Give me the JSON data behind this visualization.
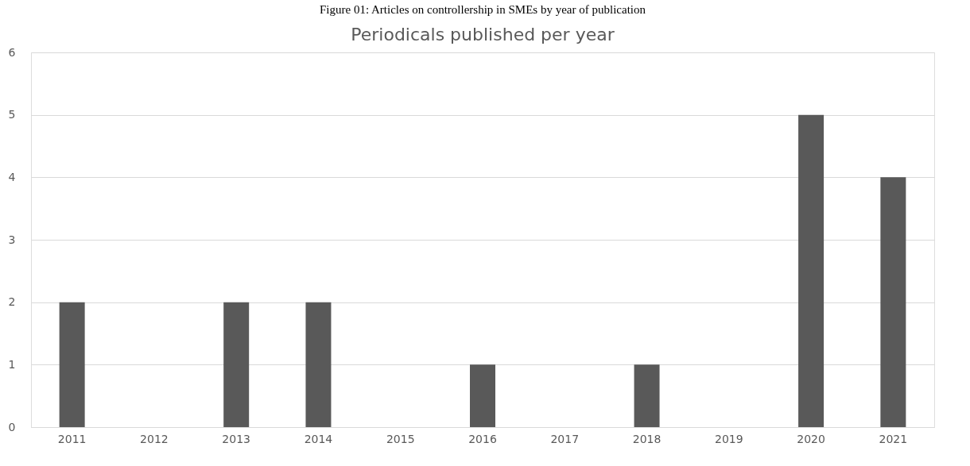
{
  "chart_data": {
    "type": "bar",
    "title": "Figure 01: Articles on controllership in SMEs by year of publication",
    "subtitle": "Periodicals published per year",
    "categories": [
      "2011",
      "2012",
      "2013",
      "2014",
      "2015",
      "2016",
      "2017",
      "2018",
      "2019",
      "2020",
      "2021"
    ],
    "values": [
      2,
      0,
      2,
      2,
      0,
      1,
      0,
      1,
      0,
      5,
      4
    ],
    "color": "#595959",
    "ylim": [
      0,
      6
    ],
    "yticks": [
      0,
      1,
      2,
      3,
      4,
      5,
      6
    ],
    "grid": "y"
  }
}
